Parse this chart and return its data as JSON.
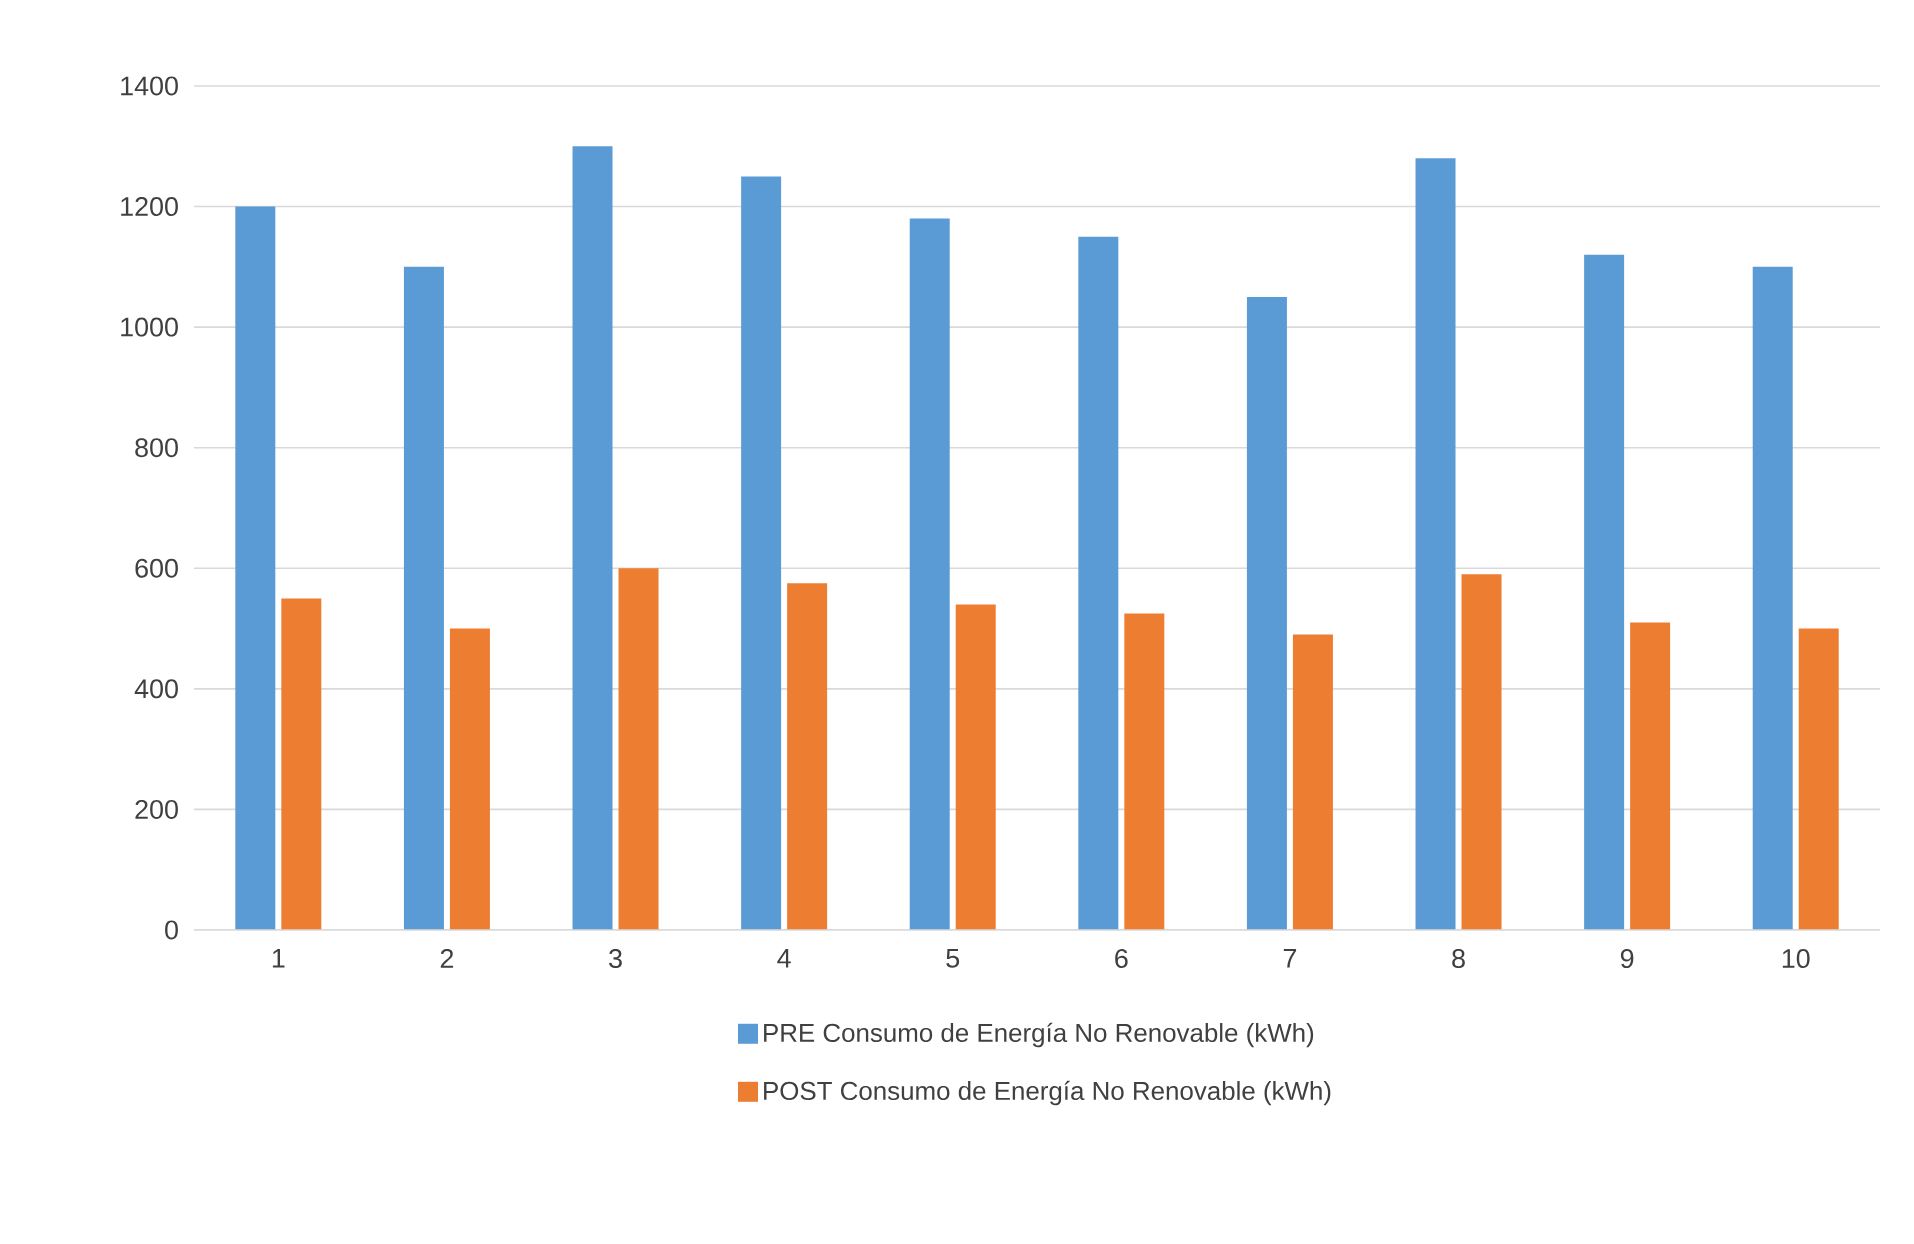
{
  "chart_data": {
    "type": "bar",
    "categories": [
      "1",
      "2",
      "3",
      "4",
      "5",
      "6",
      "7",
      "8",
      "9",
      "10"
    ],
    "series": [
      {
        "name": "PRE Consumo de Energía No Renovable (kWh)",
        "color": "#5b9bd5",
        "values": [
          1200,
          1100,
          1300,
          1250,
          1180,
          1150,
          1050,
          1280,
          1120,
          1100
        ]
      },
      {
        "name": "POST Consumo de Energía No Renovable (kWh)",
        "color": "#ed7d31",
        "values": [
          550,
          500,
          600,
          575,
          540,
          525,
          490,
          590,
          510,
          500
        ]
      }
    ],
    "ylim": [
      0,
      1400
    ],
    "yticks": [
      0,
      200,
      400,
      600,
      800,
      1000,
      1200,
      1400
    ],
    "grid": "y",
    "legend": "bottom"
  }
}
